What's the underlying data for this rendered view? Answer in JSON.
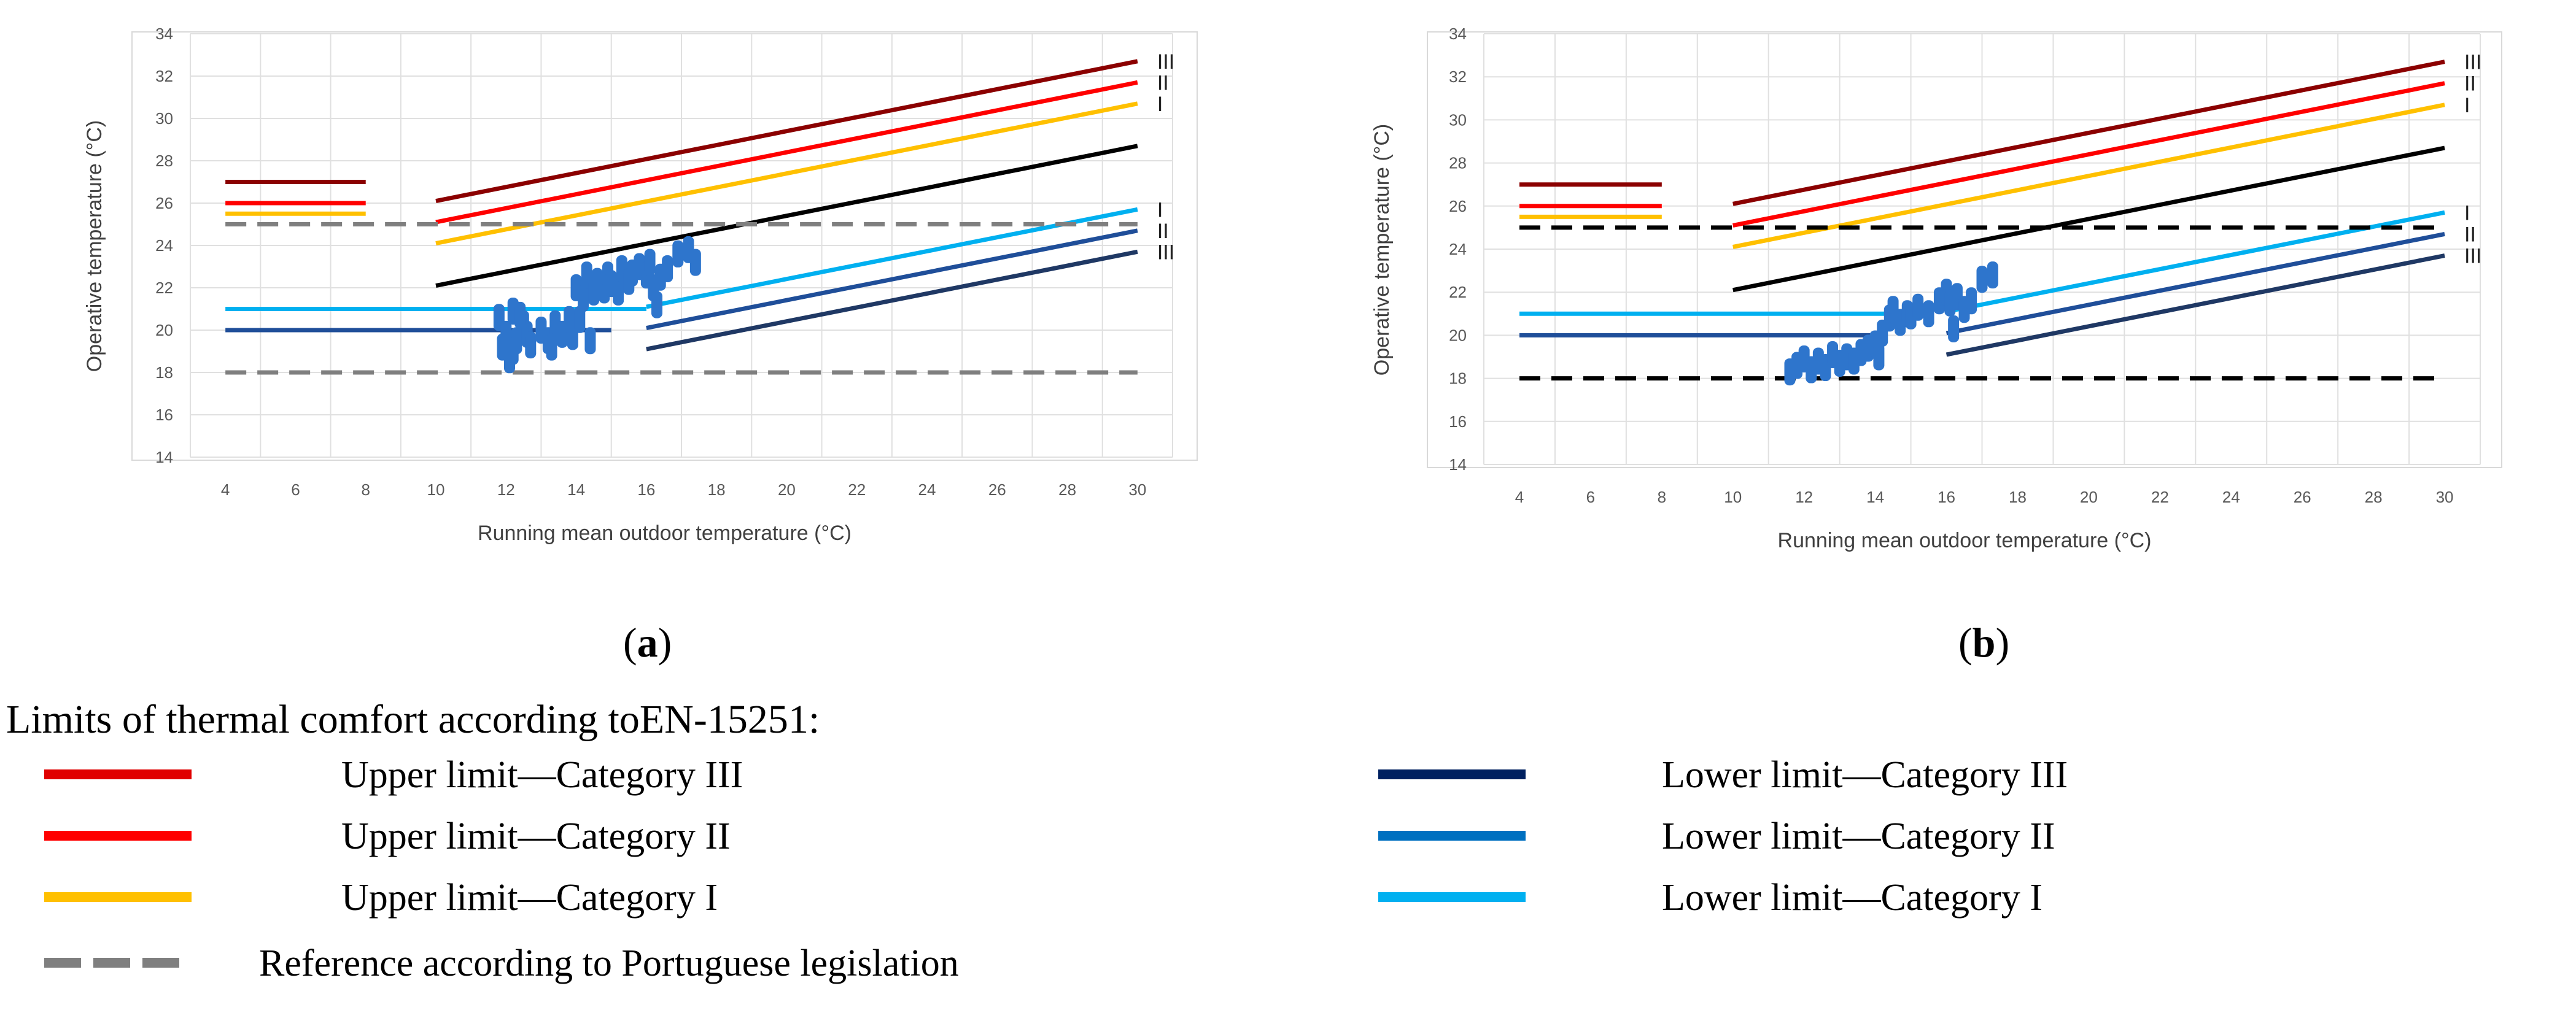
{
  "chart_data": [
    {
      "type": "line",
      "panel": "(a)",
      "panel_letter": "a",
      "xlabel": "Running mean outdoor temperature (°C)",
      "ylabel": "Operative temperature (°C)",
      "xlim": [
        3,
        31
      ],
      "ylim": [
        14,
        34
      ],
      "xticks": [
        4,
        6,
        8,
        10,
        12,
        14,
        16,
        18,
        20,
        22,
        24,
        26,
        28,
        30
      ],
      "yticks": [
        14,
        16,
        18,
        20,
        22,
        24,
        26,
        28,
        30,
        32,
        34
      ],
      "grid": true,
      "series": [
        {
          "name": "Upper limit—Category III",
          "color": "#8b0000",
          "segments": [
            [
              [
                4,
                27
              ],
              [
                8,
                27
              ]
            ],
            [
              [
                10,
                26.1
              ],
              [
                30,
                32.7
              ]
            ]
          ],
          "end_label": "III"
        },
        {
          "name": "Upper limit—Category II",
          "color": "#ff0000",
          "segments": [
            [
              [
                4,
                26
              ],
              [
                8,
                26
              ]
            ],
            [
              [
                10,
                25.1
              ],
              [
                30,
                31.7
              ]
            ]
          ],
          "end_label": "II"
        },
        {
          "name": "Upper limit—Category I",
          "color": "#ffc000",
          "segments": [
            [
              [
                4,
                25.5
              ],
              [
                8,
                25.5
              ]
            ],
            [
              [
                10,
                24.1
              ],
              [
                30,
                30.7
              ]
            ]
          ],
          "end_label": "I"
        },
        {
          "name": "",
          "color": "#000000",
          "segments": [
            [
              [
                10,
                22.1
              ],
              [
                30,
                28.7
              ]
            ]
          ]
        },
        {
          "name": "Lower limit—Category I",
          "color": "#00b0f0",
          "segments": [
            [
              [
                4,
                21
              ],
              [
                16,
                21
              ]
            ],
            [
              [
                16,
                21.1
              ],
              [
                30,
                25.7
              ]
            ]
          ],
          "end_label": "I"
        },
        {
          "name": "Lower limit—Category II",
          "color": "#1f4e99",
          "segments": [
            [
              [
                4,
                20
              ],
              [
                15,
                20
              ]
            ],
            [
              [
                16,
                20.1
              ],
              [
                30,
                24.7
              ]
            ]
          ],
          "end_label": "II"
        },
        {
          "name": "Lower limit—Category III",
          "color": "#1f3864",
          "segments": [
            [
              [
                16,
                19.1
              ],
              [
                30,
                23.7
              ]
            ]
          ],
          "end_label": "III"
        },
        {
          "name": "Reference according to Portuguese legislation",
          "color": "#7f7f7f",
          "dashed": true,
          "segments": [
            [
              [
                4,
                25
              ],
              [
                30,
                25
              ]
            ],
            [
              [
                4,
                18
              ],
              [
                30,
                18
              ]
            ]
          ]
        }
      ],
      "scatter": {
        "name": "",
        "color": "#2e75cc",
        "points": [
          [
            11.8,
            20.6
          ],
          [
            12,
            19.8
          ],
          [
            12.2,
            20.9
          ],
          [
            12.1,
            18.6
          ],
          [
            11.9,
            19.2
          ],
          [
            12.3,
            19.5
          ],
          [
            12.5,
            20.3
          ],
          [
            12.2,
            19
          ],
          [
            12.6,
            19.8
          ],
          [
            12.4,
            20.7
          ],
          [
            12.7,
            19.3
          ],
          [
            13,
            20
          ],
          [
            13.2,
            19.5
          ],
          [
            13.4,
            20.3
          ],
          [
            13.6,
            19.8
          ],
          [
            13.3,
            19.2
          ],
          [
            13.8,
            20.5
          ],
          [
            13.9,
            19.7
          ],
          [
            14,
            22
          ],
          [
            14.2,
            21.5
          ],
          [
            14.3,
            22.6
          ],
          [
            14.1,
            20.5
          ],
          [
            14.4,
            19.5
          ],
          [
            14.5,
            21.8
          ],
          [
            14.6,
            22.3
          ],
          [
            14.8,
            21.9
          ],
          [
            14.9,
            22.6
          ],
          [
            15,
            22.2
          ],
          [
            15.2,
            21.8
          ],
          [
            15.3,
            22.9
          ],
          [
            15.5,
            22.3
          ],
          [
            15.6,
            22.7
          ],
          [
            15.8,
            23
          ],
          [
            16,
            22.6
          ],
          [
            16.1,
            23.2
          ],
          [
            16.2,
            22
          ],
          [
            16.3,
            21.2
          ],
          [
            16.4,
            22.5
          ],
          [
            16.6,
            22.9
          ],
          [
            16.9,
            23.6
          ],
          [
            17.2,
            23.8
          ],
          [
            17.4,
            23.2
          ]
        ]
      }
    },
    {
      "type": "line",
      "panel": "(b)",
      "panel_letter": "b",
      "xlabel": "Running mean outdoor temperature (°C)",
      "ylabel": "Operative temperature (°C)",
      "xlim": [
        3,
        31
      ],
      "ylim": [
        14,
        34
      ],
      "xticks": [
        4,
        6,
        8,
        10,
        12,
        14,
        16,
        18,
        20,
        22,
        24,
        26,
        28,
        30
      ],
      "yticks": [
        14,
        16,
        18,
        20,
        22,
        24,
        26,
        28,
        30,
        32,
        34
      ],
      "grid": true,
      "series": [
        {
          "name": "Upper limit—Category III",
          "color": "#8b0000",
          "segments": [
            [
              [
                4,
                27
              ],
              [
                8,
                27
              ]
            ],
            [
              [
                10,
                26.1
              ],
              [
                30,
                32.7
              ]
            ]
          ],
          "end_label": "III"
        },
        {
          "name": "Upper limit—Category II",
          "color": "#ff0000",
          "segments": [
            [
              [
                4,
                26
              ],
              [
                8,
                26
              ]
            ],
            [
              [
                10,
                25.1
              ],
              [
                30,
                31.7
              ]
            ]
          ],
          "end_label": "II"
        },
        {
          "name": "Upper limit—Category I",
          "color": "#ffc000",
          "segments": [
            [
              [
                4,
                25.5
              ],
              [
                8,
                25.5
              ]
            ],
            [
              [
                10,
                24.1
              ],
              [
                30,
                30.7
              ]
            ]
          ],
          "end_label": "I"
        },
        {
          "name": "",
          "color": "#000000",
          "segments": [
            [
              [
                10,
                22.1
              ],
              [
                30,
                28.7
              ]
            ]
          ]
        },
        {
          "name": "Lower limit—Category I",
          "color": "#00b0f0",
          "segments": [
            [
              [
                4,
                21
              ],
              [
                14.5,
                21
              ]
            ],
            [
              [
                16,
                21.1
              ],
              [
                30,
                25.7
              ]
            ]
          ],
          "end_label": "I"
        },
        {
          "name": "Lower limit—Category II",
          "color": "#1f4e99",
          "segments": [
            [
              [
                4,
                20
              ],
              [
                14,
                20
              ]
            ],
            [
              [
                16,
                20.1
              ],
              [
                30,
                24.7
              ]
            ]
          ],
          "end_label": "II"
        },
        {
          "name": "Lower limit—Category III",
          "color": "#1f3864",
          "segments": [
            [
              [
                16,
                19.1
              ],
              [
                30,
                23.7
              ]
            ]
          ],
          "end_label": "III"
        },
        {
          "name": "Reference according to Portuguese legislation",
          "color": "#000000",
          "dashed": true,
          "segments": [
            [
              [
                4,
                25
              ],
              [
                30,
                25
              ]
            ],
            [
              [
                4,
                18
              ],
              [
                30,
                18
              ]
            ]
          ]
        }
      ],
      "scatter": {
        "name": "",
        "color": "#2e75cc",
        "points": [
          [
            11.6,
            18.3
          ],
          [
            11.8,
            18.6
          ],
          [
            12,
            18.9
          ],
          [
            12.2,
            18.4
          ],
          [
            12.4,
            18.8
          ],
          [
            12.6,
            18.5
          ],
          [
            12.8,
            19.1
          ],
          [
            13,
            18.7
          ],
          [
            13.2,
            19
          ],
          [
            13.4,
            18.8
          ],
          [
            13.6,
            19.2
          ],
          [
            13.8,
            19.4
          ],
          [
            14,
            19.6
          ],
          [
            14.1,
            19
          ],
          [
            14.2,
            20.1
          ],
          [
            14.4,
            20.8
          ],
          [
            14.5,
            21.2
          ],
          [
            14.7,
            20.6
          ],
          [
            14.9,
            21
          ],
          [
            15,
            20.9
          ],
          [
            15.2,
            21.3
          ],
          [
            15.5,
            21
          ],
          [
            15.8,
            21.6
          ],
          [
            16,
            22
          ],
          [
            16.1,
            21.5
          ],
          [
            16.2,
            20.3
          ],
          [
            16.3,
            21.8
          ],
          [
            16.5,
            21.2
          ],
          [
            16.7,
            21.6
          ],
          [
            17,
            22.6
          ],
          [
            17.3,
            22.8
          ]
        ]
      }
    }
  ],
  "legend": {
    "title": "Limits of thermal comfort according toEN-15251:",
    "items": [
      {
        "label": "Upper limit—Category III",
        "color": "#e00000"
      },
      {
        "label": "Upper limit—Category II",
        "color": "#ff0000"
      },
      {
        "label": "Upper limit—Category I",
        "color": "#ffc000"
      },
      {
        "label": "Reference according to Portuguese legislation",
        "color": "#7f7f7f",
        "dashed": true
      },
      {
        "label": "Lower limit—Category III",
        "color": "#002060"
      },
      {
        "label": "Lower limit—Category II",
        "color": "#0070c0"
      },
      {
        "label": "Lower limit—Category I",
        "color": "#00b0f0"
      }
    ]
  }
}
